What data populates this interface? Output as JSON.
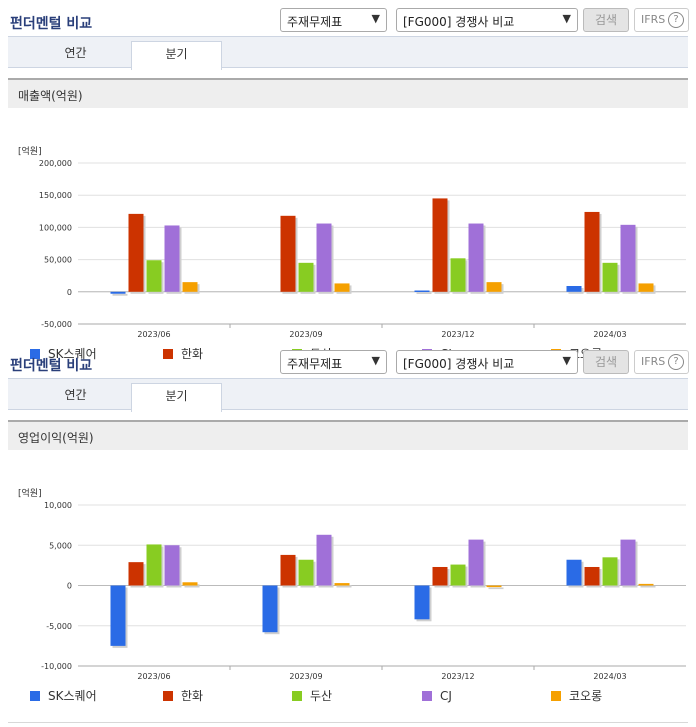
{
  "panels": [
    {
      "title": "펀더멘털 비교",
      "select1": "주재무제표",
      "select2": "[FG000] 경쟁사 비교",
      "search_label": "검색",
      "ifrs_label": "IFRS",
      "ifrs_help": "?",
      "tabs": [
        "연간",
        "분기"
      ],
      "active_tab": 1,
      "subtitle": "매출액(억원)",
      "unit_label": "[억원]"
    },
    {
      "title": "펀더멘털 비교",
      "select1": "주재무제표",
      "select2": "[FG000] 경쟁사 비교",
      "search_label": "검색",
      "ifrs_label": "IFRS",
      "ifrs_help": "?",
      "tabs": [
        "연간",
        "분기"
      ],
      "active_tab": 1,
      "subtitle": "영업이익(억원)",
      "unit_label": "[억원]"
    }
  ],
  "chart_data": [
    {
      "type": "bar",
      "title": "매출액(억원)",
      "ylabel": "[억원]",
      "categories": [
        "2023/06",
        "2023/09",
        "2023/12",
        "2024/03"
      ],
      "ylim": [
        -50000,
        200000
      ],
      "yticks": [
        200000,
        150000,
        100000,
        50000,
        0,
        -50000
      ],
      "ytick_labels": [
        "200,000",
        "150,000",
        "100,000",
        "50,000",
        "0",
        "-50,000"
      ],
      "grid": true,
      "legend_position": "bottom",
      "series": [
        {
          "name": "SK스퀘어",
          "color": "#2a6be6",
          "values": [
            -3000,
            null,
            2000,
            9000
          ]
        },
        {
          "name": "한화",
          "color": "#cc3300",
          "values": [
            121000,
            118000,
            145000,
            124000
          ]
        },
        {
          "name": "두산",
          "color": "#88cc22",
          "values": [
            49000,
            45000,
            52000,
            45000
          ]
        },
        {
          "name": "CJ",
          "color": "#a070d8",
          "values": [
            103000,
            106000,
            106000,
            104000
          ]
        },
        {
          "name": "코오롱",
          "color": "#f5a000",
          "values": [
            15000,
            13000,
            15000,
            13000
          ]
        }
      ]
    },
    {
      "type": "bar",
      "title": "영업이익(억원)",
      "ylabel": "[억원]",
      "categories": [
        "2023/06",
        "2023/09",
        "2023/12",
        "2024/03"
      ],
      "ylim": [
        -10000,
        10000
      ],
      "yticks": [
        10000,
        5000,
        0,
        -5000,
        -10000
      ],
      "ytick_labels": [
        "10,000",
        "5,000",
        "0",
        "-5,000",
        "-10,000"
      ],
      "grid": true,
      "legend_position": "bottom",
      "series": [
        {
          "name": "SK스퀘어",
          "color": "#2a6be6",
          "values": [
            -7500,
            -5800,
            -4200,
            3200
          ]
        },
        {
          "name": "한화",
          "color": "#cc3300",
          "values": [
            2900,
            3800,
            2300,
            2300
          ]
        },
        {
          "name": "두산",
          "color": "#88cc22",
          "values": [
            5100,
            3200,
            2600,
            3500
          ]
        },
        {
          "name": "CJ",
          "color": "#a070d8",
          "values": [
            5000,
            6300,
            5700,
            5700
          ]
        },
        {
          "name": "코오롱",
          "color": "#f5a000",
          "values": [
            400,
            300,
            -200,
            200
          ]
        }
      ]
    }
  ]
}
